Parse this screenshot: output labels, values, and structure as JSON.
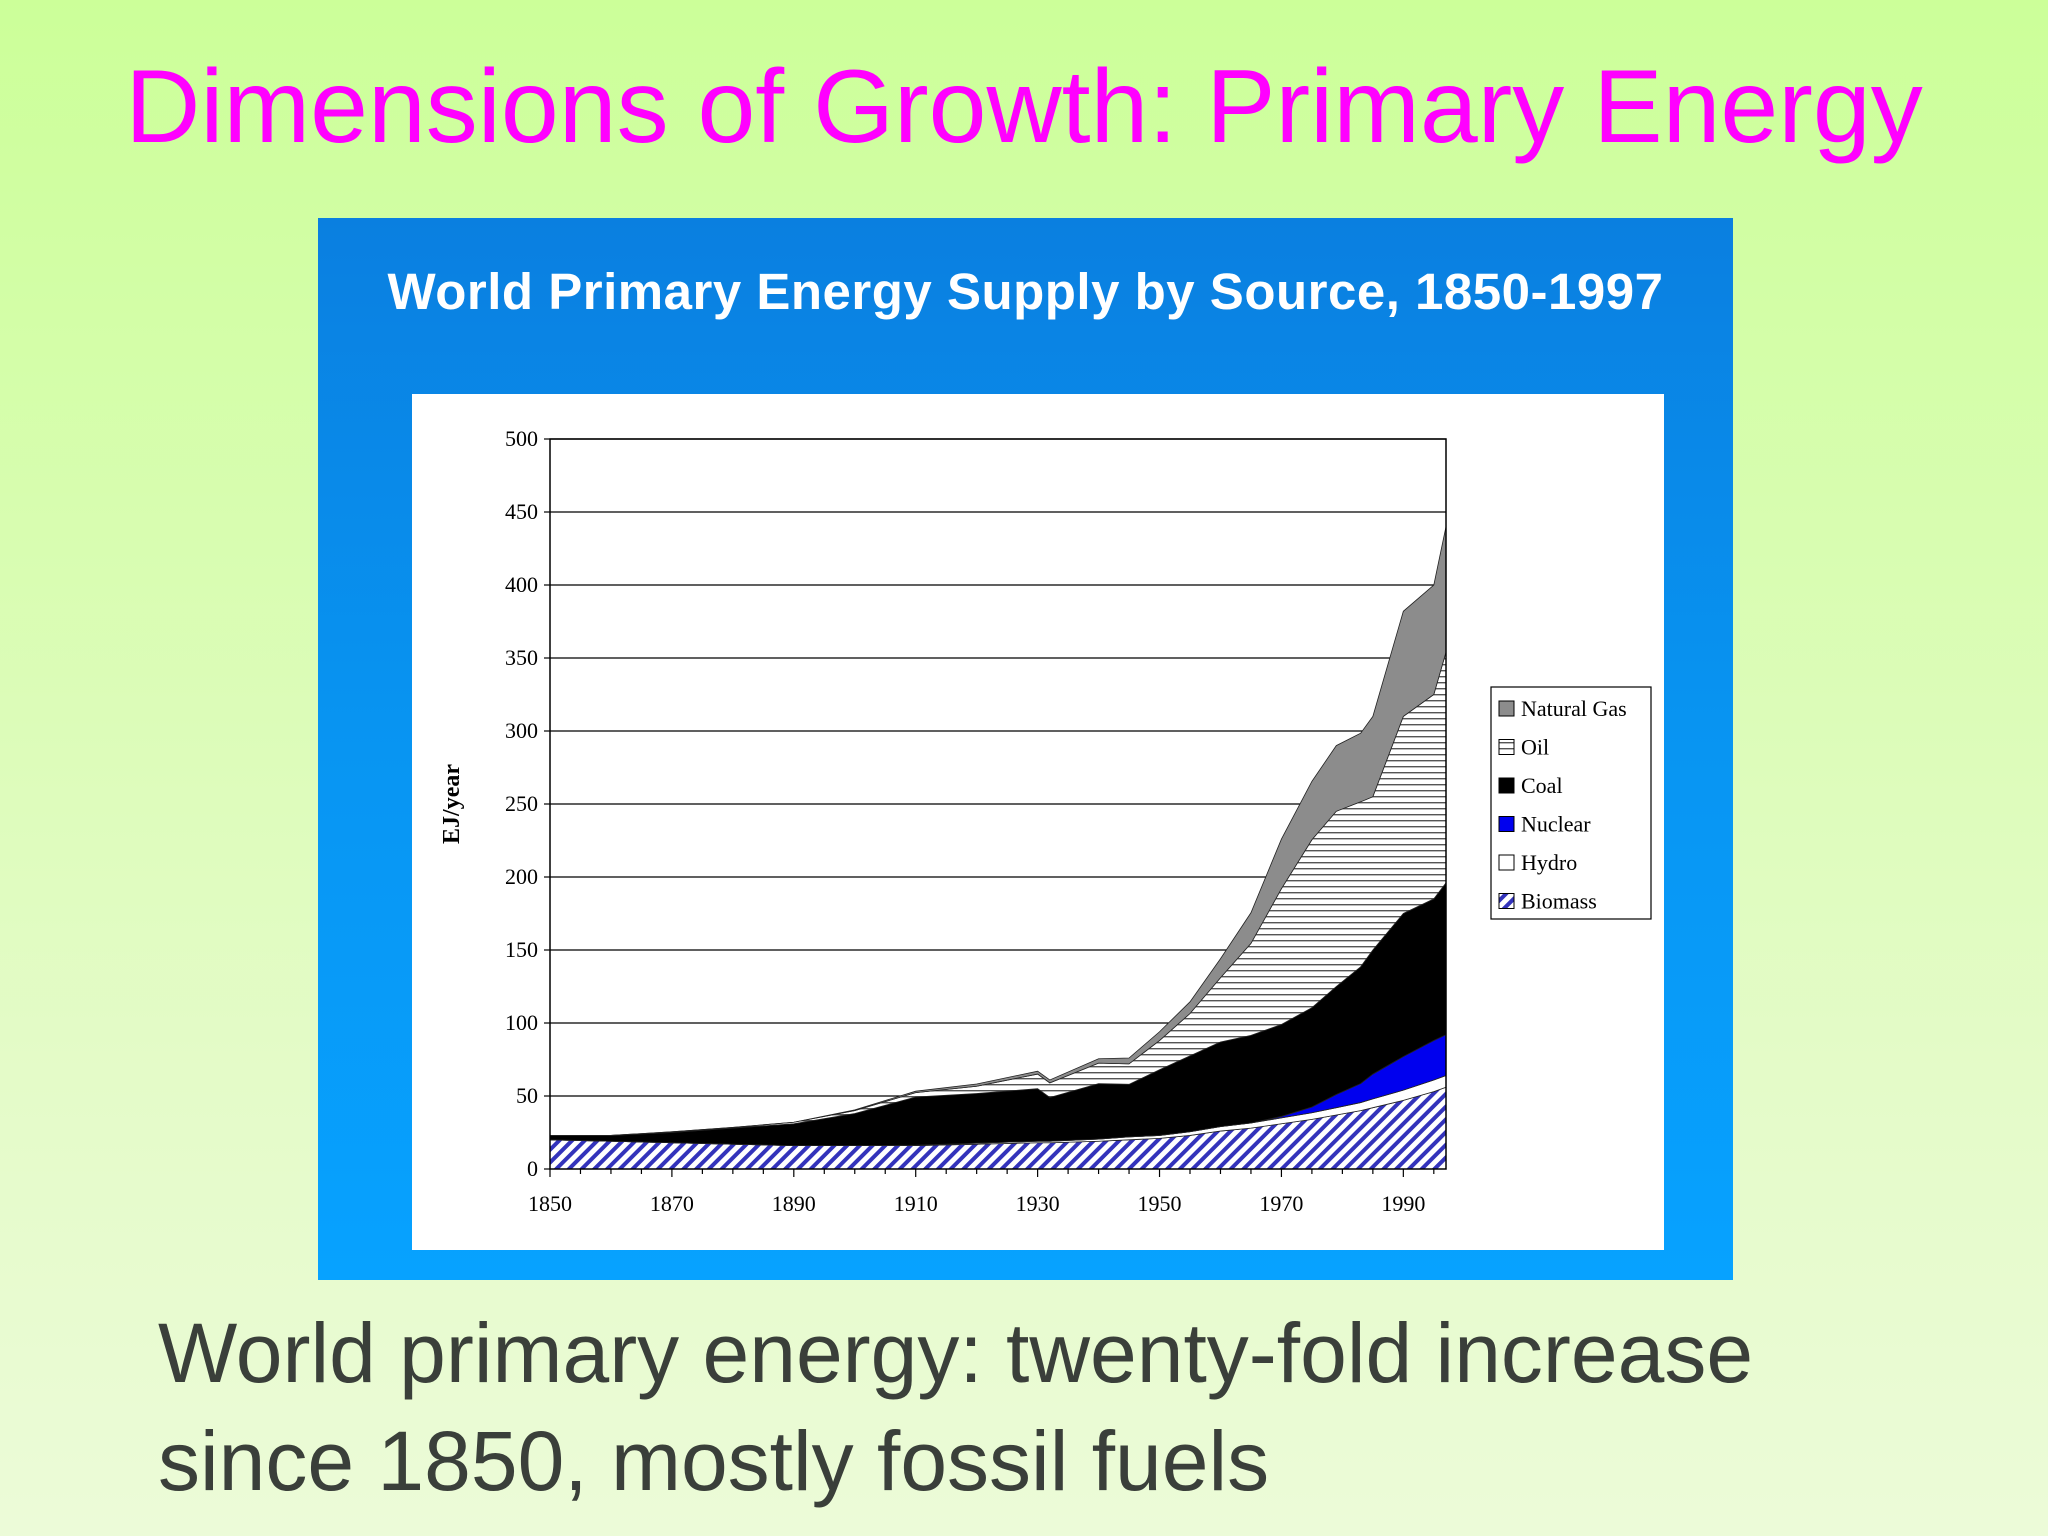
{
  "slide": {
    "title": "Dimensions of Growth: Primary Energy",
    "caption_line1": "World primary energy: twenty-fold increase",
    "caption_line2": "since 1850, mostly fossil fuels"
  },
  "colors": {
    "title": "#ff00ff",
    "frame": "#0a8ef0",
    "natural_gas": "#8c8c8c",
    "oil": "#ffffff",
    "coal": "#000000",
    "nuclear": "#0000ee",
    "hydro": "#ffffff",
    "biomass": "#3333bb"
  },
  "chart_data": {
    "type": "area",
    "stacked": true,
    "title": "World Primary Energy Supply by Source, 1850-1997",
    "xlabel": "",
    "ylabel": "EJ/year",
    "xlim": [
      1850,
      1997
    ],
    "ylim": [
      0,
      500
    ],
    "xticks": [
      1850,
      1870,
      1890,
      1910,
      1930,
      1950,
      1970,
      1990
    ],
    "yticks": [
      0,
      50,
      100,
      150,
      200,
      250,
      300,
      350,
      400,
      450,
      500
    ],
    "grid": "horizontal",
    "legend_position": "right",
    "x": [
      1850,
      1860,
      1870,
      1880,
      1890,
      1900,
      1910,
      1920,
      1930,
      1932,
      1940,
      1945,
      1950,
      1955,
      1960,
      1965,
      1970,
      1975,
      1979,
      1983,
      1985,
      1990,
      1995,
      1997
    ],
    "series": [
      {
        "name": "Biomass",
        "pattern": "diagonal-hatch",
        "values": [
          20,
          19,
          18,
          17,
          16,
          16,
          16,
          17,
          18,
          18,
          19,
          20,
          21,
          23,
          26,
          28,
          31,
          34,
          37,
          40,
          42,
          47,
          53,
          56
        ]
      },
      {
        "name": "Hydro",
        "pattern": "solid",
        "values": [
          0,
          0,
          0,
          0,
          0,
          0,
          0.3,
          0.7,
          1,
          1,
          1.5,
          2,
          2,
          2.5,
          3,
          3.5,
          4,
          4.5,
          5,
          5.5,
          6,
          7,
          8,
          8
        ]
      },
      {
        "name": "Nuclear",
        "pattern": "solid",
        "values": [
          0,
          0,
          0,
          0,
          0,
          0,
          0,
          0,
          0,
          0,
          0,
          0,
          0,
          0,
          0,
          0,
          1,
          4,
          9,
          13,
          17,
          23,
          27,
          28
        ]
      },
      {
        "name": "Coal",
        "pattern": "solid",
        "values": [
          3,
          4,
          7,
          11,
          15,
          22,
          33,
          34,
          36,
          30,
          38,
          36,
          45,
          52,
          58,
          60,
          63,
          68,
          74,
          80,
          85,
          98,
          97,
          104
        ]
      },
      {
        "name": "Oil",
        "pattern": "horizontal-lines",
        "values": [
          0,
          0,
          0.5,
          0.5,
          1,
          2,
          3,
          5,
          10,
          10,
          14,
          14,
          20,
          29,
          44,
          63,
          93,
          115,
          120,
          113,
          105,
          135,
          140,
          158
        ]
      },
      {
        "name": "Natural Gas",
        "pattern": "solid",
        "values": [
          0,
          0,
          0,
          0,
          0,
          0.5,
          1,
          1.5,
          2,
          2,
          3,
          4,
          6,
          8,
          13,
          21,
          34,
          40,
          45,
          47,
          55,
          72,
          75,
          86
        ]
      }
    ]
  }
}
